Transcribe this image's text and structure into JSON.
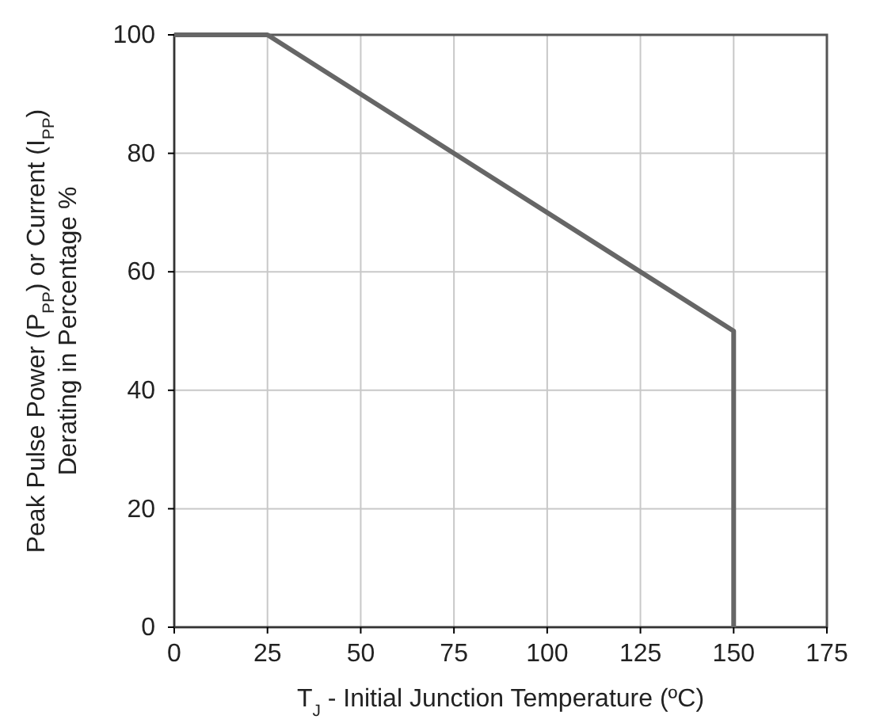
{
  "chart_data": {
    "type": "line",
    "xlabel": "T$_{J}$ - Initial Junction Temperature (ºC)",
    "ylabel": "Peak Pulse Power (P$_{PP}$) or Current (I$_{PP}$)\nDerating in Percentage %",
    "x": [
      0,
      25,
      150,
      150
    ],
    "series": [
      {
        "color": "#666666",
        "values": [
          100,
          100,
          50,
          0
        ]
      }
    ],
    "xlim": [
      0,
      175
    ],
    "xticks": [
      0,
      25,
      50,
      75,
      100,
      125,
      150,
      175
    ],
    "ylim": [
      0,
      100
    ],
    "yticks": [
      0,
      20,
      40,
      60,
      80,
      100
    ],
    "grid": true,
    "marker": "none",
    "line_style": "solid"
  }
}
